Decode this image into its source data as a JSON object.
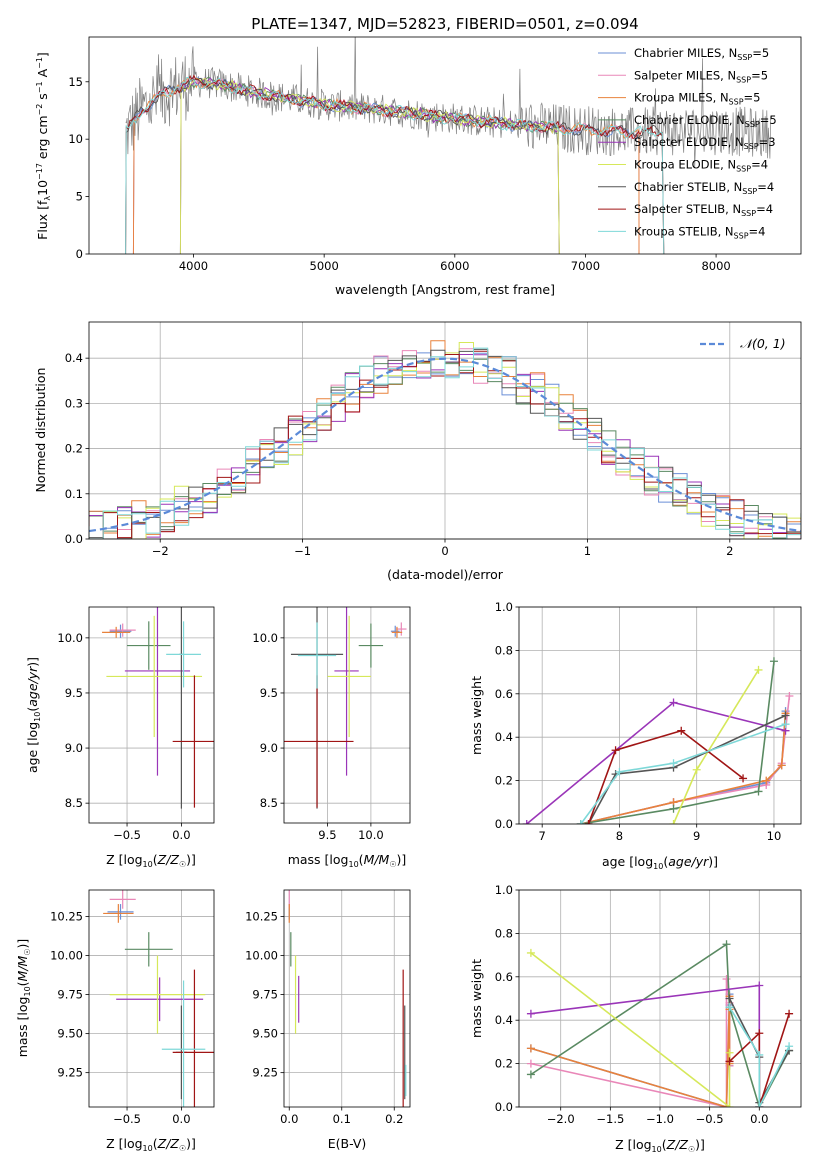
{
  "title": "PLATE=1347, MJD=52823, FIBERID=0501, z=0.094",
  "colors": {
    "Chabrier MILES": "#6b8fd6",
    "Salpeter MILES": "#e987b8",
    "Kroupa MILES": "#e8823c",
    "Chabrier ELODIE": "#5a8a62",
    "Salpeter ELODIE": "#9a35b8",
    "Kroupa ELODIE": "#d6e85a",
    "Chabrier STELIB": "#555555",
    "Salpeter STELIB": "#a01515",
    "Kroupa STELIB": "#7ed8d8",
    "data": "#808080"
  },
  "chart_data": [
    {
      "type": "line",
      "panel": "spectrum",
      "title": "PLATE=1347, MJD=52823, FIBERID=0501, z=0.094",
      "xlabel": "wavelength [Angstrom, rest frame]",
      "ylabel": "Flux [f_λ 10^-17 erg cm^-2 s^-1 A^-1]",
      "xlim": [
        3200,
        8650
      ],
      "ylim": [
        0,
        18.9
      ],
      "xticks": [
        4000,
        5000,
        6000,
        7000,
        8000
      ],
      "yticks": [
        0,
        5,
        10,
        15
      ],
      "grid": false,
      "legend_position": "top-right",
      "legend": [
        {
          "sub": "Chabrier MILES, N",
          "sup": "SSP",
          "suffix": "=5",
          "color_key": "Chabrier MILES"
        },
        {
          "sub": "Salpeter MILES, N",
          "sup": "SSP",
          "suffix": "=5",
          "color_key": "Salpeter MILES"
        },
        {
          "sub": "Kroupa MILES, N",
          "sup": "SSP",
          "suffix": "=5",
          "color_key": "Kroupa MILES"
        },
        {
          "sub": "Chabrier ELODIE, N",
          "sup": "SSP",
          "suffix": "=5",
          "color_key": "Chabrier ELODIE"
        },
        {
          "sub": "Salpeter ELODIE, N",
          "sup": "SSP",
          "suffix": "=3",
          "color_key": "Salpeter ELODIE"
        },
        {
          "sub": "Kroupa ELODIE, N",
          "sup": "SSP",
          "suffix": "=4",
          "color_key": "Kroupa ELODIE"
        },
        {
          "sub": "Chabrier STELIB, N",
          "sup": "SSP",
          "suffix": "=4",
          "color_key": "Chabrier STELIB"
        },
        {
          "sub": "Salpeter STELIB, N",
          "sup": "SSP",
          "suffix": "=4",
          "color_key": "Salpeter STELIB"
        },
        {
          "sub": "Kroupa STELIB, N",
          "sup": "SSP",
          "suffix": "=4",
          "color_key": "Kroupa STELIB"
        }
      ],
      "continuum_x": [
        3480,
        3600,
        3800,
        4000,
        4200,
        4500,
        5000,
        5500,
        6000,
        6500,
        7000,
        7400,
        8000,
        8400
      ],
      "continuum_y": [
        10.5,
        12.5,
        14.2,
        15.0,
        14.8,
        14.0,
        13.0,
        12.5,
        11.8,
        11.2,
        10.8,
        10.6,
        10.8,
        10.5
      ],
      "model_ranges": [
        {
          "name": "Chabrier MILES",
          "x": [
            3540,
            7410
          ]
        },
        {
          "name": "Salpeter MILES",
          "x": [
            3540,
            7410
          ]
        },
        {
          "name": "Kroupa MILES",
          "x": [
            3540,
            7410
          ]
        },
        {
          "name": "Chabrier ELODIE",
          "x": [
            3900,
            6800
          ]
        },
        {
          "name": "Salpeter ELODIE",
          "x": [
            3900,
            6800
          ]
        },
        {
          "name": "Kroupa ELODIE",
          "x": [
            3900,
            6800
          ]
        },
        {
          "name": "Chabrier STELIB",
          "x": [
            3480,
            7600
          ]
        },
        {
          "name": "Salpeter STELIB",
          "x": [
            3480,
            7600
          ]
        },
        {
          "name": "Kroupa STELIB",
          "x": [
            3480,
            7600
          ]
        }
      ]
    },
    {
      "type": "step",
      "panel": "residuals",
      "xlabel": "(data-model)/error",
      "ylabel": "Normed distribution",
      "xlim": [
        -2.5,
        2.5
      ],
      "ylim": [
        0,
        0.48
      ],
      "xticks": [
        -2,
        -1,
        0,
        1,
        2
      ],
      "yticks": [
        0.0,
        0.1,
        0.2,
        0.3,
        0.4
      ],
      "grid": true,
      "legend_position": "top-right",
      "reference_label": "𝒩(0, 1)",
      "reference_mu": 0,
      "reference_sigma": 1,
      "bin_width": 0.1
    },
    {
      "type": "errorbar",
      "panel": "age-Z",
      "xlabel": "Z [log10(Z/Z☉)]",
      "ylabel": "age  [log10(age/yr)]",
      "xlim": [
        -0.85,
        0.3
      ],
      "ylim": [
        8.32,
        10.28
      ],
      "xticks": [
        -0.5,
        0.0
      ],
      "yticks": [
        8.5,
        9.0,
        9.5,
        10.0
      ],
      "grid": true,
      "points": [
        {
          "name": "Chabrier MILES",
          "x": -0.56,
          "xerr": 0.1,
          "y": 10.06,
          "yerr": 0.06
        },
        {
          "name": "Salpeter MILES",
          "x": -0.54,
          "xerr": 0.12,
          "y": 10.07,
          "yerr": 0.06
        },
        {
          "name": "Kroupa MILES",
          "x": -0.6,
          "xerr": 0.13,
          "y": 10.05,
          "yerr": 0.05
        },
        {
          "name": "Chabrier ELODIE",
          "x": -0.3,
          "xerr": 0.2,
          "y": 9.93,
          "yerr": 0.22
        },
        {
          "name": "Salpeter ELODIE",
          "x": -0.22,
          "xerr": 0.3,
          "y": 9.7,
          "yerr": 0.95
        },
        {
          "name": "Kroupa ELODIE",
          "x": -0.25,
          "xerr": 0.44,
          "y": 9.65,
          "yerr": 0.55
        },
        {
          "name": "Chabrier STELIB",
          "x": 0.0,
          "xerr": 0.02,
          "y": 9.85,
          "yerr": 1.4
        },
        {
          "name": "Salpeter STELIB",
          "x": 0.12,
          "xerr": 0.2,
          "y": 9.06,
          "yerr": 0.6
        },
        {
          "name": "Kroupa STELIB",
          "x": 0.02,
          "xerr": 0.16,
          "y": 9.85,
          "yerr": 0.3
        }
      ]
    },
    {
      "type": "errorbar",
      "panel": "age-mass",
      "xlabel": "mass [log10(M/M☉)]",
      "xlim": [
        9.0,
        10.45
      ],
      "ylim": [
        8.32,
        10.28
      ],
      "xticks": [
        9.5,
        10.0
      ],
      "yticks": [
        8.5,
        9.0,
        9.5,
        10.0
      ],
      "grid": true,
      "points": [
        {
          "name": "Chabrier MILES",
          "x": 10.28,
          "xerr": 0.05,
          "y": 10.06,
          "yerr": 0.05
        },
        {
          "name": "Salpeter MILES",
          "x": 10.35,
          "xerr": 0.06,
          "y": 10.08,
          "yerr": 0.06
        },
        {
          "name": "Kroupa MILES",
          "x": 10.3,
          "xerr": 0.06,
          "y": 10.05,
          "yerr": 0.05
        },
        {
          "name": "Chabrier ELODIE",
          "x": 10.0,
          "xerr": 0.14,
          "y": 9.93,
          "yerr": 0.2
        },
        {
          "name": "Salpeter ELODIE",
          "x": 9.72,
          "xerr": 0.14,
          "y": 9.7,
          "yerr": 0.95
        },
        {
          "name": "Kroupa ELODIE",
          "x": 9.75,
          "xerr": 0.25,
          "y": 9.65,
          "yerr": 0.55
        },
        {
          "name": "Chabrier STELIB",
          "x": 9.38,
          "xerr": 0.3,
          "y": 9.85,
          "yerr": 1.4
        },
        {
          "name": "Salpeter STELIB",
          "x": 9.38,
          "xerr": 0.42,
          "y": 9.06,
          "yerr": 0.6
        },
        {
          "name": "Kroupa STELIB",
          "x": 9.38,
          "xerr": 0.22,
          "y": 9.84,
          "yerr": 0.3
        }
      ]
    },
    {
      "type": "line",
      "panel": "weight-age",
      "xlabel": "age  [log10(age/yr)]",
      "ylabel": "mass weight",
      "xlim": [
        6.7,
        10.35
      ],
      "ylim": [
        0,
        1.0
      ],
      "xticks": [
        7,
        8,
        9,
        10
      ],
      "yticks": [
        0.0,
        0.2,
        0.4,
        0.6,
        0.8,
        1.0
      ],
      "grid": true,
      "series": [
        {
          "name": "Chabrier MILES",
          "x": [
            7.5,
            8.7,
            9.9,
            10.1,
            10.15
          ],
          "y": [
            0.0,
            0.1,
            0.19,
            0.27,
            0.52
          ]
        },
        {
          "name": "Salpeter MILES",
          "x": [
            7.5,
            8.7,
            9.9,
            10.1,
            10.2
          ],
          "y": [
            0.0,
            0.1,
            0.18,
            0.28,
            0.59
          ]
        },
        {
          "name": "Kroupa MILES",
          "x": [
            7.5,
            8.7,
            9.9,
            10.1,
            10.15
          ],
          "y": [
            0.0,
            0.1,
            0.2,
            0.27,
            0.51
          ]
        },
        {
          "name": "Chabrier ELODIE",
          "x": [
            7.5,
            8.7,
            9.8,
            10.0
          ],
          "y": [
            0.0,
            0.07,
            0.15,
            0.75
          ]
        },
        {
          "name": "Salpeter ELODIE",
          "x": [
            6.8,
            8.7,
            10.15
          ],
          "y": [
            0.0,
            0.56,
            0.43
          ]
        },
        {
          "name": "Kroupa ELODIE",
          "x": [
            8.7,
            9.0,
            9.8
          ],
          "y": [
            0.0,
            0.25,
            0.71
          ]
        },
        {
          "name": "Chabrier STELIB",
          "x": [
            7.6,
            7.95,
            8.7,
            10.15
          ],
          "y": [
            0.0,
            0.23,
            0.26,
            0.5
          ]
        },
        {
          "name": "Salpeter STELIB",
          "x": [
            7.6,
            7.95,
            8.8,
            9.6
          ],
          "y": [
            0.0,
            0.34,
            0.43,
            0.21
          ]
        },
        {
          "name": "Kroupa STELIB",
          "x": [
            7.5,
            8.0,
            8.7,
            10.15
          ],
          "y": [
            0.0,
            0.24,
            0.28,
            0.46
          ]
        }
      ]
    },
    {
      "type": "errorbar",
      "panel": "mass-Z",
      "xlabel": "Z [log10(Z/Z☉)]",
      "ylabel": "mass [log10(M/M☉)]",
      "xlim": [
        -0.85,
        0.3
      ],
      "ylim": [
        9.03,
        10.42
      ],
      "xticks": [
        -0.5,
        0.0
      ],
      "yticks": [
        9.25,
        9.5,
        9.75,
        10.0,
        10.25
      ],
      "grid": true,
      "points": [
        {
          "name": "Chabrier MILES",
          "x": -0.56,
          "xerr": 0.12,
          "y": 10.28,
          "yerr": 0.05
        },
        {
          "name": "Salpeter MILES",
          "x": -0.54,
          "xerr": 0.12,
          "y": 10.36,
          "yerr": 0.06
        },
        {
          "name": "Kroupa MILES",
          "x": -0.58,
          "xerr": 0.14,
          "y": 10.27,
          "yerr": 0.06
        },
        {
          "name": "Chabrier ELODIE",
          "x": -0.3,
          "xerr": 0.22,
          "y": 10.04,
          "yerr": 0.11
        },
        {
          "name": "Salpeter ELODIE",
          "x": -0.2,
          "xerr": 0.4,
          "y": 9.72,
          "yerr": 0.14
        },
        {
          "name": "Kroupa ELODIE",
          "x": -0.22,
          "xerr": 0.44,
          "y": 9.75,
          "yerr": 0.25
        },
        {
          "name": "Chabrier STELIB",
          "x": 0.0,
          "xerr": 0.05,
          "y": 9.38,
          "yerr": 0.3
        },
        {
          "name": "Salpeter STELIB",
          "x": 0.12,
          "xerr": 0.2,
          "y": 9.38,
          "yerr": 0.53
        },
        {
          "name": "Kroupa STELIB",
          "x": 0.02,
          "xerr": 0.2,
          "y": 9.4,
          "yerr": 0.44
        }
      ]
    },
    {
      "type": "errorbar",
      "panel": "mass-EBV",
      "xlabel": "E(B-V)",
      "xlim": [
        -0.01,
        0.23
      ],
      "ylim": [
        9.03,
        10.42
      ],
      "xticks": [
        0.0,
        0.1,
        0.2
      ],
      "yticks": [
        9.25,
        9.5,
        9.75,
        10.0,
        10.25
      ],
      "grid": true,
      "points": [
        {
          "name": "Chabrier MILES",
          "x": 0.0,
          "xerr": 0.0,
          "y": 10.28,
          "yerr": 0.05
        },
        {
          "name": "Salpeter MILES",
          "x": 0.0,
          "xerr": 0.0,
          "y": 10.36,
          "yerr": 0.06
        },
        {
          "name": "Kroupa MILES",
          "x": 0.0,
          "xerr": 0.0,
          "y": 10.27,
          "yerr": 0.06
        },
        {
          "name": "Chabrier ELODIE",
          "x": 0.003,
          "xerr": 0.0,
          "y": 10.04,
          "yerr": 0.11
        },
        {
          "name": "Salpeter ELODIE",
          "x": 0.018,
          "xerr": 0.0,
          "y": 9.72,
          "yerr": 0.15
        },
        {
          "name": "Kroupa ELODIE",
          "x": 0.012,
          "xerr": 0.0,
          "y": 9.75,
          "yerr": 0.25
        },
        {
          "name": "Chabrier STELIB",
          "x": 0.22,
          "xerr": 0.0,
          "y": 9.38,
          "yerr": 0.3
        },
        {
          "name": "Salpeter STELIB",
          "x": 0.217,
          "xerr": 0.0,
          "y": 9.38,
          "yerr": 0.53
        },
        {
          "name": "Kroupa STELIB",
          "x": 0.222,
          "xerr": 0.0,
          "y": 9.2,
          "yerr": 0.1
        }
      ]
    },
    {
      "type": "line",
      "panel": "weight-Z",
      "xlabel": "Z [log10(Z/Z☉)]",
      "ylabel": "mass weight",
      "xlim": [
        -2.42,
        0.42
      ],
      "ylim": [
        0,
        1.0
      ],
      "xticks": [
        -2.0,
        -1.5,
        -1.0,
        -0.5,
        0.0
      ],
      "yticks": [
        0.0,
        0.2,
        0.4,
        0.6,
        0.8,
        1.0
      ],
      "grid": true,
      "series": [
        {
          "name": "Chabrier MILES",
          "x": [
            -2.3,
            -0.33,
            -0.3,
            -0.3,
            -0.3
          ],
          "y": [
            0.27,
            0.0,
            0.52,
            0.47,
            0.19
          ]
        },
        {
          "name": "Salpeter MILES",
          "x": [
            -2.3,
            -0.33,
            -0.33,
            -0.3,
            -0.3
          ],
          "y": [
            0.2,
            0.0,
            0.59,
            0.48,
            0.19
          ]
        },
        {
          "name": "Kroupa MILES",
          "x": [
            -2.3,
            -0.33,
            -0.3,
            -0.3,
            -0.3
          ],
          "y": [
            0.27,
            0.0,
            0.51,
            0.45,
            0.2
          ]
        },
        {
          "name": "Chabrier ELODIE",
          "x": [
            -2.3,
            -0.33,
            -0.3,
            0.0,
            0.3
          ],
          "y": [
            0.15,
            0.75,
            0.46,
            0.0,
            0.26
          ]
        },
        {
          "name": "Salpeter ELODIE",
          "x": [
            -2.3,
            0.0,
            0.0
          ],
          "y": [
            0.43,
            0.56,
            0.0
          ]
        },
        {
          "name": "Kroupa ELODIE",
          "x": [
            -2.3,
            -0.3,
            -0.3
          ],
          "y": [
            0.71,
            0.0,
            0.25
          ]
        },
        {
          "name": "Chabrier STELIB",
          "x": [
            -0.3,
            0.0,
            0.0,
            0.3
          ],
          "y": [
            0.5,
            0.23,
            0.02,
            0.26
          ]
        },
        {
          "name": "Salpeter STELIB",
          "x": [
            -0.3,
            0.0,
            0.0,
            0.3
          ],
          "y": [
            0.21,
            0.34,
            0.0,
            0.43
          ]
        },
        {
          "name": "Kroupa STELIB",
          "x": [
            -0.3,
            0.0,
            0.0,
            0.3
          ],
          "y": [
            0.46,
            0.24,
            0.0,
            0.28
          ]
        }
      ]
    }
  ]
}
